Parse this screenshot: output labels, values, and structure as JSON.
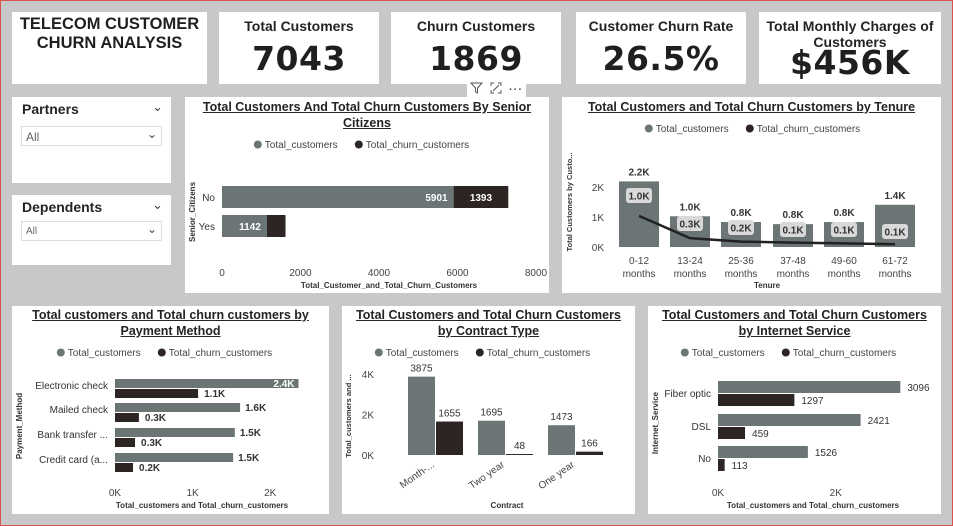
{
  "report_title": "TELECOM CUSTOMER\nCHURN ANALYSIS",
  "kpis": [
    {
      "title": "Total Customers",
      "value": "7043"
    },
    {
      "title": "Churn Customers",
      "value": "1869"
    },
    {
      "title": "Customer Churn Rate",
      "value": "26.5%"
    },
    {
      "title": "Total Monthly Charges of Customers",
      "value": "$456K"
    }
  ],
  "slicers": {
    "partners": {
      "label": "Partners",
      "value": "All"
    },
    "dependents": {
      "label": "Dependents",
      "value": "All"
    }
  },
  "visual_header_icons": [
    "filter-icon",
    "focus-mode-icon",
    "more-options-icon"
  ],
  "colors": {
    "total": "#6b7575",
    "churn": "#2d2424",
    "line": "#222222"
  },
  "legend": {
    "total": "Total_customers",
    "churn": "Total_churn_customers"
  },
  "chart_data": [
    {
      "id": "senior",
      "type": "bar",
      "title": "Total Customers And Total Churn Customers By Senior Citizens",
      "orientation": "horizontal-stacked",
      "categories": [
        "No",
        "Yes"
      ],
      "series": [
        {
          "name": "Total_customers",
          "values": [
            5901,
            1142
          ],
          "labels": [
            "5901",
            "1142"
          ]
        },
        {
          "name": "Total_churn_customers",
          "values": [
            1393,
            476
          ],
          "labels": [
            "1393",
            ""
          ]
        }
      ],
      "xlabel": "Total_Customer_and_Total_Churn_Customers",
      "ylabel": "Senior_Citizens",
      "xlim": [
        0,
        8000
      ],
      "xticks": [
        "0",
        "2000",
        "4000",
        "6000",
        "8000"
      ],
      "legend_position": "top"
    },
    {
      "id": "tenure",
      "type": "bar",
      "title": "Total Customers and Total Churn Customers by Tenure",
      "orientation": "vertical-with-line",
      "categories": [
        "0-12 months",
        "13-24 months",
        "25-36 months",
        "37-48 months",
        "49-60 months",
        "61-72 months"
      ],
      "series": [
        {
          "name": "Total_customers",
          "values": [
            2186,
            1024,
            832,
            762,
            832,
            1407
          ],
          "labels": [
            "2.2K",
            "1.0K",
            "0.8K",
            "0.8K",
            "0.8K",
            "1.4K"
          ]
        },
        {
          "name": "Total_churn_customers",
          "values": [
            1037,
            294,
            180,
            145,
            120,
            93
          ],
          "labels": [
            "1.0K",
            "0.3K",
            "0.2K",
            "0.1K",
            "0.1K",
            "0.1K"
          ]
        }
      ],
      "xlabel": "Tenure",
      "ylabel": "Total Customers by Custo...",
      "ylim": [
        0,
        3000
      ],
      "yticks": [
        "0K",
        "1K",
        "2K"
      ],
      "legend_position": "top"
    },
    {
      "id": "payment",
      "type": "bar",
      "title": "Total customers and Total churn customers by Payment Method",
      "orientation": "horizontal-grouped",
      "categories": [
        "Electronic check",
        "Mailed check",
        "Bank transfer ...",
        "Credit card (a..."
      ],
      "series": [
        {
          "name": "Total_customers",
          "values": [
            2365,
            1612,
            1544,
            1522
          ],
          "labels": [
            "2.4K",
            "1.6K",
            "1.5K",
            "1.5K"
          ]
        },
        {
          "name": "Total_churn_customers",
          "values": [
            1071,
            308,
            258,
            232
          ],
          "labels": [
            "1.1K",
            "0.3K",
            "0.3K",
            "0.2K"
          ]
        }
      ],
      "xlabel": "Total_customers and Total_churn_customers",
      "ylabel": "Payment_Method",
      "xlim": [
        0,
        2500
      ],
      "xticks": [
        "0K",
        "1K",
        "2K"
      ],
      "legend_position": "top"
    },
    {
      "id": "contract",
      "type": "bar",
      "title": "Total Customers and Total Churn Customers by Contract Type",
      "orientation": "vertical-grouped",
      "categories": [
        "Month-...",
        "Two year",
        "One year"
      ],
      "series": [
        {
          "name": "Total_customers",
          "values": [
            3875,
            1695,
            1473
          ],
          "labels": [
            "3875",
            "1695",
            "1473"
          ]
        },
        {
          "name": "Total_churn_customers",
          "values": [
            1655,
            48,
            166
          ],
          "labels": [
            "1655",
            "48",
            "166"
          ]
        }
      ],
      "xlabel": "Contract",
      "ylabel": "Total_customers and ...",
      "ylim": [
        0,
        4500
      ],
      "yticks": [
        "0K",
        "2K",
        "4K"
      ],
      "legend_position": "top"
    },
    {
      "id": "internet",
      "type": "bar",
      "title": "Total Customers and Total Churn Customers by Internet Service",
      "orientation": "horizontal-grouped",
      "categories": [
        "Fiber optic",
        "DSL",
        "No"
      ],
      "series": [
        {
          "name": "Total_customers",
          "values": [
            3096,
            2421,
            1526
          ],
          "labels": [
            "3096",
            "2421",
            "1526"
          ]
        },
        {
          "name": "Total_churn_customers",
          "values": [
            1297,
            459,
            113
          ],
          "labels": [
            "1297",
            "459",
            "113"
          ]
        }
      ],
      "xlabel": "Total_customers and Total_churn_customers",
      "ylabel": "Internet_Service",
      "xlim": [
        0,
        3600
      ],
      "xticks": [
        "0K",
        "2K"
      ],
      "legend_position": "top"
    }
  ]
}
